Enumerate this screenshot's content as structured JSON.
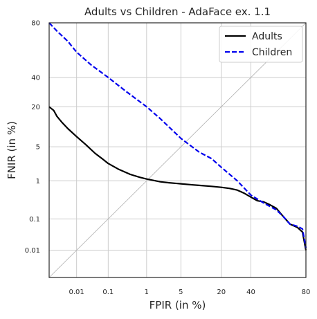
{
  "chart_data": {
    "type": "line",
    "title": "Adults vs Children - AdaFace ex. 1.1",
    "xlabel": "FPIR (in %)",
    "ylabel": "FNIR (in %)",
    "scale": "probit",
    "xlim": [
      0.001,
      80
    ],
    "ylim": [
      0.001,
      80
    ],
    "xticks": [
      0.01,
      0.1,
      1,
      5,
      20,
      40,
      80
    ],
    "xtick_labels": [
      "0.01",
      "0.1",
      "1",
      "5",
      "20",
      "40",
      "80"
    ],
    "yticks": [
      0.01,
      0.1,
      1,
      5,
      20,
      40,
      80
    ],
    "ytick_labels": [
      "0.01",
      "0.1",
      "1",
      "5",
      "20",
      "40",
      "80"
    ],
    "grid": true,
    "legend_position": "top-right",
    "diagonal_reference_line": true,
    "colors": {
      "Adults": "#000000",
      "Children": "#0000ee",
      "grid": "#cccccc",
      "diagonal": "#b0b0b0"
    },
    "series": [
      {
        "name": "Adults",
        "style": "solid",
        "x": [
          0.001,
          0.0015,
          0.002,
          0.003,
          0.005,
          0.01,
          0.02,
          0.04,
          0.07,
          0.1,
          0.2,
          0.4,
          0.7,
          1,
          2,
          3,
          5,
          8,
          10,
          15,
          20,
          25,
          30,
          35,
          40,
          45,
          50,
          55,
          60,
          65,
          70,
          75,
          78,
          80
        ],
        "y": [
          20,
          18,
          15,
          12.5,
          10,
          7.5,
          5.5,
          3.8,
          2.9,
          2.4,
          1.8,
          1.4,
          1.2,
          1.1,
          0.95,
          0.9,
          0.85,
          0.8,
          0.78,
          0.74,
          0.7,
          0.66,
          0.6,
          0.5,
          0.4,
          0.32,
          0.3,
          0.25,
          0.2,
          0.12,
          0.07,
          0.055,
          0.04,
          0.01
        ]
      },
      {
        "name": "Children",
        "style": "dashed",
        "x": [
          0.001,
          0.002,
          0.005,
          0.01,
          0.03,
          0.1,
          0.3,
          1,
          2,
          5,
          10,
          15,
          20,
          30,
          40,
          50,
          60,
          65,
          70,
          75,
          78,
          80
        ],
        "y": [
          80,
          75,
          68,
          60,
          50,
          40,
          30,
          20,
          14,
          7,
          4,
          3,
          2,
          1,
          0.45,
          0.28,
          0.18,
          0.12,
          0.07,
          0.06,
          0.05,
          0.012
        ]
      }
    ]
  }
}
